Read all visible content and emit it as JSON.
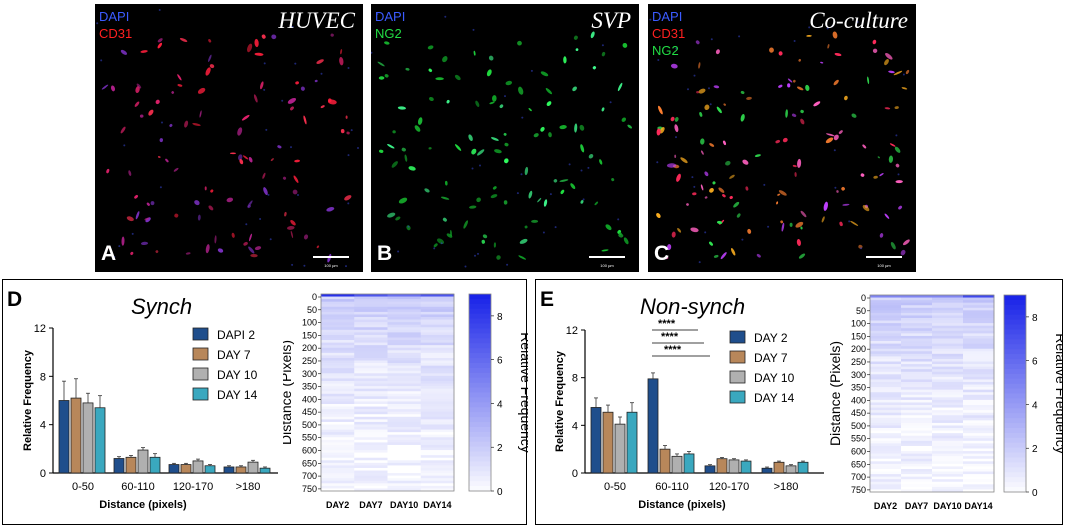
{
  "micrographs": [
    {
      "letter": "A",
      "title": "HUVEC",
      "channels": [
        {
          "name": "DAPI",
          "color": "#3b5bff"
        },
        {
          "name": "CD31",
          "color": "#ff2020"
        }
      ],
      "scale": "100 µm"
    },
    {
      "letter": "B",
      "title": "SVP",
      "channels": [
        {
          "name": "DAPI",
          "color": "#3b5bff"
        },
        {
          "name": "NG2",
          "color": "#22dd44"
        }
      ],
      "scale": "100 µm"
    },
    {
      "letter": "C",
      "title": "Co-culture",
      "channels": [
        {
          "name": "DAPI",
          "color": "#3b5bff"
        },
        {
          "name": "CD31",
          "color": "#ff2020"
        },
        {
          "name": "NG2",
          "color": "#22dd44"
        }
      ],
      "scale": "100 µm"
    }
  ],
  "panels": [
    {
      "letter": "D",
      "title": "Synch"
    },
    {
      "letter": "E",
      "title": "Non-synch"
    }
  ],
  "chart_data": [
    {
      "type": "bar",
      "panel": "D",
      "title": "Synch",
      "xlabel": "Distance (pixels)",
      "ylabel": "Relative Frequency",
      "ylim": [
        0,
        12
      ],
      "yticks": [
        0,
        4,
        8,
        12
      ],
      "categories": [
        "0-50",
        "60-110",
        "120-170",
        ">180"
      ],
      "series": [
        {
          "name": "DAPI 2",
          "values": [
            6.0,
            1.2,
            0.7,
            0.5
          ],
          "errors": [
            1.6,
            0.15,
            0.1,
            0.1
          ],
          "color": "#1f4e8c"
        },
        {
          "name": "DAY 7",
          "values": [
            6.2,
            1.3,
            0.7,
            0.5
          ],
          "errors": [
            1.6,
            0.15,
            0.1,
            0.1
          ],
          "color": "#b8875a"
        },
        {
          "name": "DAY 10",
          "values": [
            5.8,
            1.9,
            1.0,
            0.9
          ],
          "errors": [
            0.8,
            0.2,
            0.15,
            0.15
          ],
          "color": "#b0b0b0"
        },
        {
          "name": "DAY 14",
          "values": [
            5.4,
            1.3,
            0.6,
            0.4
          ],
          "errors": [
            1.0,
            0.3,
            0.1,
            0.1
          ],
          "color": "#3aa8bf"
        }
      ],
      "significance": []
    },
    {
      "type": "bar",
      "panel": "E",
      "title": "Non-synch",
      "xlabel": "Distance (pixels)",
      "ylabel": "Relative Frequency",
      "ylim": [
        0,
        12
      ],
      "yticks": [
        0,
        4,
        8,
        12
      ],
      "categories": [
        "0-50",
        "60-110",
        "120-170",
        ">180"
      ],
      "series": [
        {
          "name": "DAY 2",
          "values": [
            5.5,
            7.9,
            0.6,
            0.4
          ],
          "errors": [
            0.8,
            0.5,
            0.1,
            0.1
          ],
          "color": "#1f4e8c"
        },
        {
          "name": "DAY 7",
          "values": [
            5.1,
            2.0,
            1.2,
            0.9
          ],
          "errors": [
            0.6,
            0.3,
            0.1,
            0.1
          ],
          "color": "#b8875a"
        },
        {
          "name": "DAY 10",
          "values": [
            4.1,
            1.4,
            1.1,
            0.6
          ],
          "errors": [
            0.6,
            0.2,
            0.1,
            0.1
          ],
          "color": "#b0b0b0"
        },
        {
          "name": "DAY 14",
          "values": [
            5.1,
            1.6,
            1.0,
            0.9
          ],
          "errors": [
            0.8,
            0.2,
            0.1,
            0.1
          ],
          "color": "#3aa8bf"
        }
      ],
      "significance": [
        "****",
        "****",
        "****"
      ]
    },
    {
      "type": "heatmap",
      "panel": "D",
      "xlabel": "",
      "ylabel": "Distance (Pixels)",
      "columns": [
        "DAY2",
        "DAY7",
        "DAY10",
        "DAY14"
      ],
      "yticks": [
        0,
        50,
        100,
        150,
        200,
        250,
        300,
        350,
        400,
        450,
        500,
        550,
        600,
        650,
        700,
        750
      ],
      "ylim": [
        0,
        770
      ],
      "colorbar": {
        "label": "Relative Frequency",
        "min": 0,
        "max": 9,
        "ticks": [
          0,
          2,
          4,
          6,
          8
        ],
        "low_color": "#ffffff",
        "high_color": "#1a24e8"
      },
      "top_band_values": [
        8.5,
        7,
        6,
        7
      ]
    },
    {
      "type": "heatmap",
      "panel": "E",
      "xlabel": "",
      "ylabel": "Distance (Pixels)",
      "columns": [
        "DAY2",
        "DAY7",
        "DAY10",
        "DAY14"
      ],
      "yticks": [
        0,
        50,
        100,
        150,
        200,
        250,
        300,
        350,
        400,
        450,
        500,
        550,
        600,
        650,
        700,
        750
      ],
      "ylim": [
        0,
        770
      ],
      "colorbar": {
        "label": "Relative Frequency",
        "min": 0,
        "max": 9,
        "ticks": [
          0,
          2,
          4,
          6,
          8
        ],
        "low_color": "#ffffff",
        "high_color": "#1a24e8"
      },
      "top_band_values": [
        5,
        5,
        5,
        7.5
      ]
    }
  ]
}
